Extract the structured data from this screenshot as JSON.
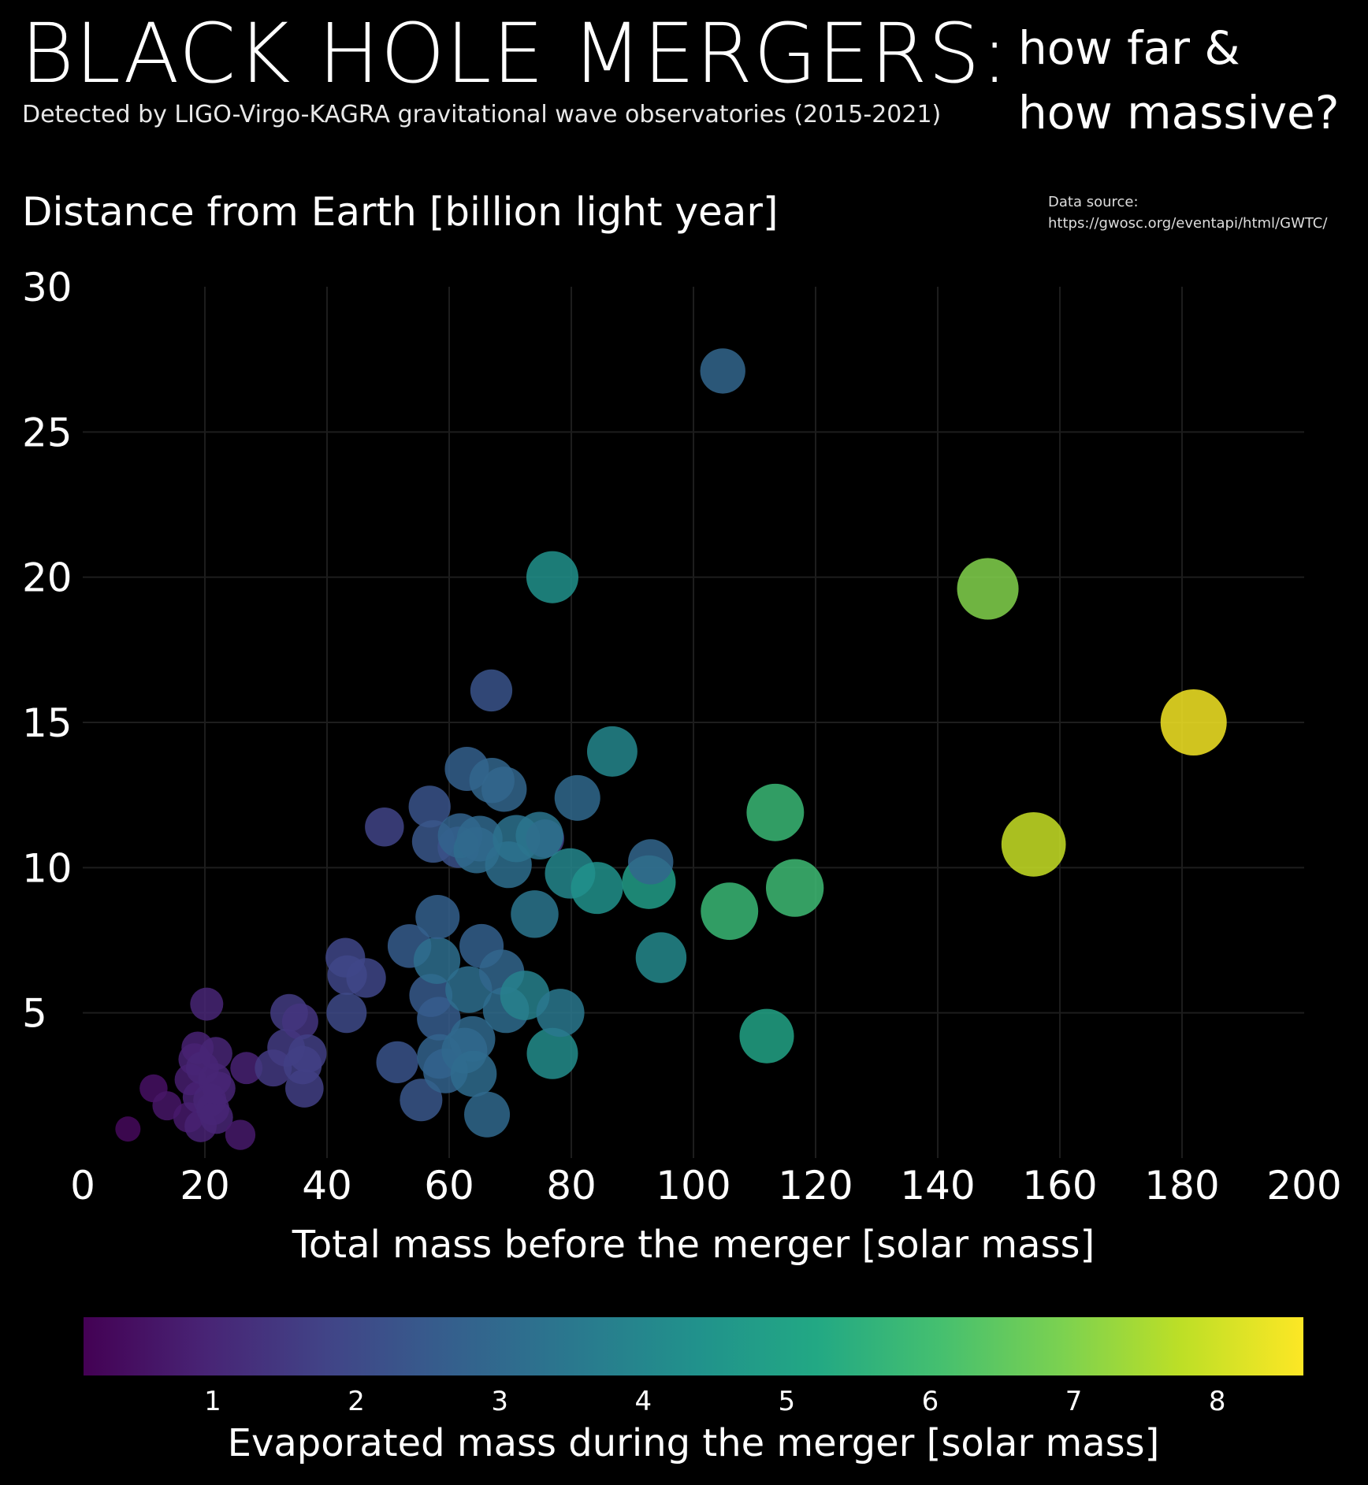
{
  "header": {
    "title": "BLACK HOLE MERGERS:",
    "subtitle": "Detected by LIGO-Virgo-KAGRA gravitational wave observatories (2015-2021)",
    "tagline": "how far &\nhow massive?",
    "source_label": "Data source:",
    "source_url": "https://gwosc.org/eventapi/html/GWTC/"
  },
  "chart_data": {
    "type": "scatter",
    "title": "BLACK HOLE MERGERS: how far & how massive?",
    "xlabel": "Total mass before the merger [solar mass]",
    "ylabel": "Distance from Earth [billion light year]",
    "colorbar_label": "Evaporated mass during the merger [solar mass]",
    "xlim": [
      0,
      200
    ],
    "ylim": [
      0,
      30
    ],
    "xticks": [
      "0",
      "20",
      "40",
      "60",
      "80",
      "100",
      "120",
      "140",
      "160",
      "180",
      "200"
    ],
    "yticks": [
      "5",
      "10",
      "15",
      "20",
      "25",
      "30"
    ],
    "ytick_values": [
      5,
      10,
      15,
      20,
      25,
      30
    ],
    "colorbar_ticks": [
      "1",
      "2",
      "3",
      "4",
      "5",
      "6",
      "7",
      "8"
    ],
    "colorbar_tick_values": [
      1,
      2,
      3,
      4,
      5,
      6,
      7,
      8
    ],
    "color_range": [
      0.1,
      8.6
    ],
    "size_encodes": "evaporated mass",
    "grid": true,
    "points": [
      {
        "x": 7.4,
        "y": 1.0,
        "c": 0.3
      },
      {
        "x": 11.6,
        "y": 2.4,
        "c": 0.5
      },
      {
        "x": 13.8,
        "y": 1.8,
        "c": 0.6
      },
      {
        "x": 17.3,
        "y": 1.4,
        "c": 0.7
      },
      {
        "x": 17.6,
        "y": 2.7,
        "c": 0.8
      },
      {
        "x": 18.3,
        "y": 3.4,
        "c": 0.9
      },
      {
        "x": 18.8,
        "y": 3.8,
        "c": 0.9
      },
      {
        "x": 19.0,
        "y": 2.1,
        "c": 0.9
      },
      {
        "x": 19.3,
        "y": 1.1,
        "c": 0.9
      },
      {
        "x": 19.6,
        "y": 3.1,
        "c": 1.0
      },
      {
        "x": 20.3,
        "y": 5.3,
        "c": 1.0
      },
      {
        "x": 20.8,
        "y": 2.0,
        "c": 1.0
      },
      {
        "x": 21.3,
        "y": 1.7,
        "c": 1.0
      },
      {
        "x": 21.6,
        "y": 2.7,
        "c": 1.0
      },
      {
        "x": 21.8,
        "y": 3.6,
        "c": 1.0
      },
      {
        "x": 21.9,
        "y": 1.4,
        "c": 1.0
      },
      {
        "x": 22.3,
        "y": 2.4,
        "c": 1.0
      },
      {
        "x": 25.8,
        "y": 0.8,
        "c": 0.7
      },
      {
        "x": 26.8,
        "y": 3.1,
        "c": 0.9
      },
      {
        "x": 31.2,
        "y": 3.1,
        "c": 1.5
      },
      {
        "x": 33.3,
        "y": 3.8,
        "c": 1.6
      },
      {
        "x": 33.8,
        "y": 5.0,
        "c": 1.6
      },
      {
        "x": 35.6,
        "y": 4.7,
        "c": 1.4
      },
      {
        "x": 36.0,
        "y": 3.2,
        "c": 1.7
      },
      {
        "x": 36.3,
        "y": 2.4,
        "c": 1.7
      },
      {
        "x": 36.8,
        "y": 3.6,
        "c": 1.7
      },
      {
        "x": 43.0,
        "y": 6.9,
        "c": 1.9
      },
      {
        "x": 43.3,
        "y": 6.3,
        "c": 1.9
      },
      {
        "x": 43.2,
        "y": 5.0,
        "c": 2.0
      },
      {
        "x": 46.4,
        "y": 6.2,
        "c": 1.9
      },
      {
        "x": 49.4,
        "y": 11.4,
        "c": 1.8
      },
      {
        "x": 51.5,
        "y": 3.3,
        "c": 2.3
      },
      {
        "x": 53.5,
        "y": 7.3,
        "c": 2.6
      },
      {
        "x": 55.4,
        "y": 2.0,
        "c": 2.4
      },
      {
        "x": 56.8,
        "y": 12.1,
        "c": 2.3
      },
      {
        "x": 57.0,
        "y": 5.6,
        "c": 2.5
      },
      {
        "x": 57.4,
        "y": 10.9,
        "c": 2.4
      },
      {
        "x": 58.0,
        "y": 6.8,
        "c": 3.2
      },
      {
        "x": 58.3,
        "y": 4.8,
        "c": 2.6
      },
      {
        "x": 58.1,
        "y": 8.3,
        "c": 2.7
      },
      {
        "x": 58.4,
        "y": 3.5,
        "c": 2.8
      },
      {
        "x": 59.4,
        "y": 3.0,
        "c": 2.8
      },
      {
        "x": 61.5,
        "y": 10.7,
        "c": 2.2
      },
      {
        "x": 61.8,
        "y": 11.1,
        "c": 2.8
      },
      {
        "x": 62.5,
        "y": 3.7,
        "c": 3.0
      },
      {
        "x": 62.9,
        "y": 13.4,
        "c": 2.7
      },
      {
        "x": 63.2,
        "y": 5.8,
        "c": 3.2
      },
      {
        "x": 63.8,
        "y": 4.1,
        "c": 3.0
      },
      {
        "x": 64.0,
        "y": 2.9,
        "c": 3.1
      },
      {
        "x": 64.5,
        "y": 10.6,
        "c": 3.1
      },
      {
        "x": 65.0,
        "y": 11.0,
        "c": 3.0
      },
      {
        "x": 65.3,
        "y": 7.3,
        "c": 2.7
      },
      {
        "x": 66.2,
        "y": 1.5,
        "c": 3.0
      },
      {
        "x": 66.9,
        "y": 16.1,
        "c": 2.3
      },
      {
        "x": 67.0,
        "y": 13.0,
        "c": 2.9
      },
      {
        "x": 68.6,
        "y": 6.4,
        "c": 2.9
      },
      {
        "x": 69.0,
        "y": 12.7,
        "c": 2.9
      },
      {
        "x": 69.3,
        "y": 5.1,
        "c": 3.1
      },
      {
        "x": 69.7,
        "y": 10.1,
        "c": 3.2
      },
      {
        "x": 71.0,
        "y": 11.0,
        "c": 3.3
      },
      {
        "x": 72.4,
        "y": 5.6,
        "c": 3.8
      },
      {
        "x": 74.0,
        "y": 8.4,
        "c": 3.4
      },
      {
        "x": 75.7,
        "y": 11.0,
        "c": 1.7
      },
      {
        "x": 74.8,
        "y": 11.1,
        "c": 3.4
      },
      {
        "x": 76.9,
        "y": 20.0,
        "c": 4.4
      },
      {
        "x": 76.9,
        "y": 3.6,
        "c": 4.2
      },
      {
        "x": 78.2,
        "y": 5.0,
        "c": 3.5
      },
      {
        "x": 79.8,
        "y": 9.8,
        "c": 4.0
      },
      {
        "x": 81.0,
        "y": 12.4,
        "c": 3.0
      },
      {
        "x": 84.2,
        "y": 9.3,
        "c": 4.4
      },
      {
        "x": 86.7,
        "y": 14.0,
        "c": 4.0
      },
      {
        "x": 92.7,
        "y": 9.5,
        "c": 4.8
      },
      {
        "x": 93.0,
        "y": 10.2,
        "c": 2.9
      },
      {
        "x": 94.7,
        "y": 6.9,
        "c": 4.1
      },
      {
        "x": 104.8,
        "y": 27.1,
        "c": 2.9
      },
      {
        "x": 105.9,
        "y": 8.5,
        "c": 5.8
      },
      {
        "x": 112.0,
        "y": 4.2,
        "c": 5.0
      },
      {
        "x": 113.4,
        "y": 11.9,
        "c": 5.8
      },
      {
        "x": 116.6,
        "y": 9.3,
        "c": 5.9
      },
      {
        "x": 148.2,
        "y": 19.6,
        "c": 7.0
      },
      {
        "x": 155.7,
        "y": 10.8,
        "c": 7.9
      },
      {
        "x": 181.9,
        "y": 15.0,
        "c": 8.5
      }
    ]
  }
}
